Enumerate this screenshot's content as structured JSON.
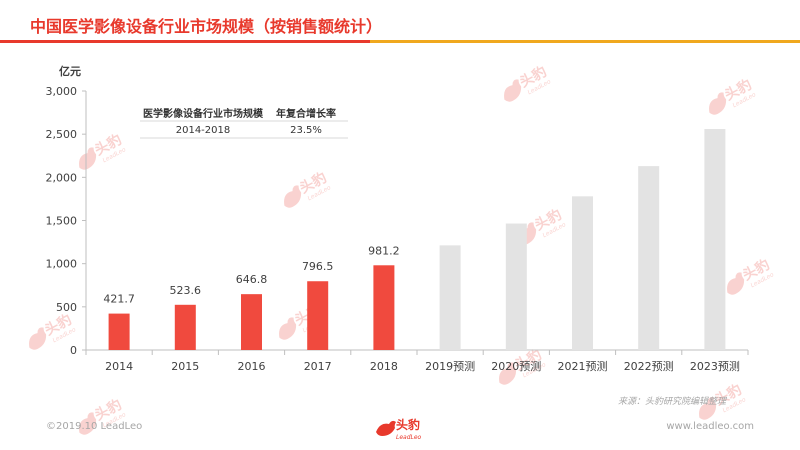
{
  "page": {
    "title": "中国医学影像设备行业市场规模（按销售额统计）"
  },
  "chart_data": {
    "type": "bar",
    "ylabel": "亿元",
    "ylim": [
      0,
      3000
    ],
    "yticks": [
      0,
      500,
      1000,
      1500,
      2000,
      2500,
      3000
    ],
    "ytick_labels": [
      "0",
      "500",
      "1,000",
      "1,500",
      "2,000",
      "2,500",
      "3,000"
    ],
    "categories": [
      "2014",
      "2015",
      "2016",
      "2017",
      "2018",
      "2019预测",
      "2020预测",
      "2021预测",
      "2022预测",
      "2023预测"
    ],
    "values": [
      421.7,
      523.6,
      646.8,
      796.5,
      981.2,
      1212,
      1465,
      1780,
      2130,
      2560
    ],
    "value_labels": [
      "421.7",
      "523.6",
      "646.8",
      "796.5",
      "981.2",
      "",
      "",
      "",
      "",
      ""
    ],
    "colors": {
      "actual": "#f04a3e",
      "forecast": "#e3e3e3",
      "axis": "#bfbfbf"
    },
    "grid": false,
    "cagr_table": {
      "headers": [
        "医学影像设备行业市场规模",
        "年复合增长率"
      ],
      "row": [
        "2014-2018",
        "23.5%"
      ]
    }
  },
  "footer": {
    "source": "来源：头豹研究院编辑整理",
    "copyright": "©2019.10 LeadLeo",
    "website": "www.leadleo.com",
    "logo_text": "头豹",
    "logo_subtext": "LeadLeo"
  },
  "watermark": {
    "text": "头豹",
    "subtext": "LeadLeo",
    "color": "#e8392c"
  }
}
